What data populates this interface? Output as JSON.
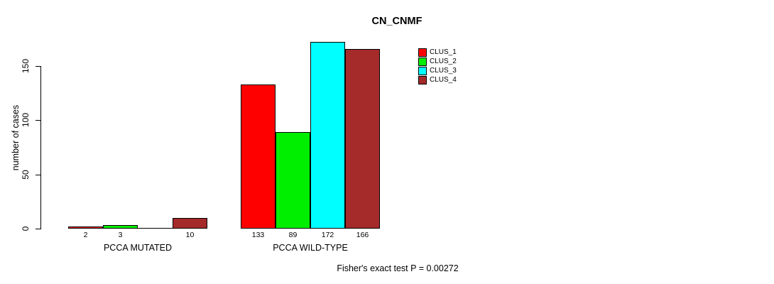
{
  "page": {
    "background": "#ffffff"
  },
  "chart_data": {
    "type": "bar",
    "title": "CN_CNMF",
    "ylabel": "number of cases",
    "xlabel": "",
    "yticks": [
      0,
      50,
      100,
      150
    ],
    "grid": false,
    "categories": [
      "PCCA MUTATED",
      "PCCA WILD-TYPE"
    ],
    "series": [
      {
        "name": "CLUS_1",
        "color": "#ff0000",
        "values": [
          2,
          133
        ]
      },
      {
        "name": "CLUS_2",
        "color": "#00ee00",
        "values": [
          3,
          89
        ]
      },
      {
        "name": "CLUS_3",
        "color": "#00ffff",
        "values": [
          0,
          172
        ]
      },
      {
        "name": "CLUS_4",
        "color": "#a52a2a",
        "values": [
          10,
          166
        ]
      }
    ],
    "bar_value_labels": [
      [
        "2",
        "3",
        "",
        "10"
      ],
      [
        "133",
        "89",
        "172",
        "166"
      ]
    ],
    "legend": {
      "position": "top-right"
    },
    "annotation": "Fisher's exact test P = 0.00272"
  }
}
